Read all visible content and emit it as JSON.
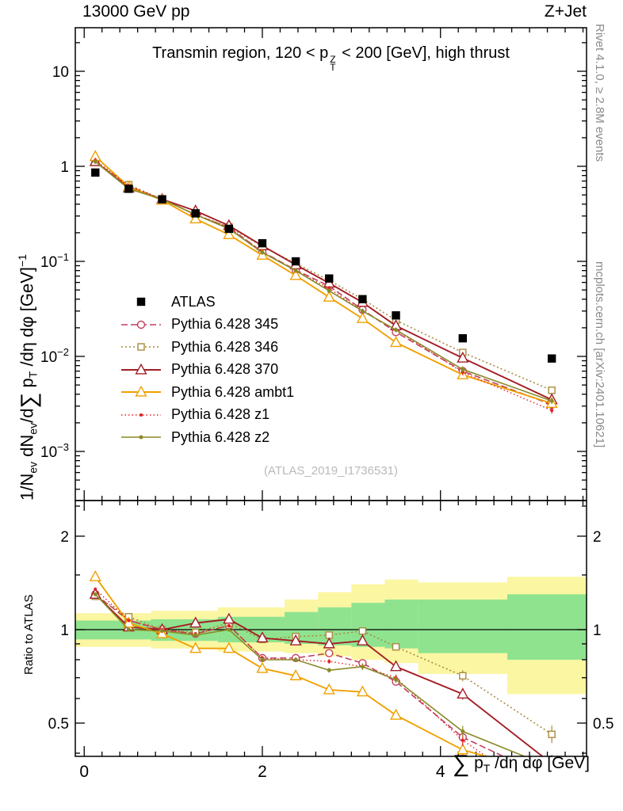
{
  "header": {
    "left": "13000 GeV pp",
    "right": "Z+Jet"
  },
  "plot": {
    "title_pre": "Transmin region, 120 < p",
    "title_sup": "Z",
    "title_sub": "T",
    "title_post": " < 200 [GeV], high thrust",
    "watermark": "(ATLAS_2019_I1736531)"
  },
  "ylabel": {
    "p1": "1/N",
    "s1": "ev",
    "p2": " dN",
    "s2": "ev",
    "p3": "/d",
    "sigma": "∑",
    "p4": " p",
    "s4": "T",
    "p5": " /dη dφ  [GeV]",
    "sup": "−1"
  },
  "xlabel": {
    "sigma": "∑",
    "p1": " p",
    "s1": "T",
    "p2": " /dη dφ [GeV]"
  },
  "ratio": {
    "ylabel": "Ratio to ATLAS"
  },
  "side": {
    "rivet": "Rivet 4.1.0, ≥ 2.8M events",
    "mcplots": "mcplots.cern.ch [arXiv:2401.10621]"
  },
  "chart_data": {
    "type": "line",
    "title": "Transmin region, 120 < pT^Z < 200 [GeV], high thrust",
    "xlabel": "Sum pT /deta dphi [GeV]",
    "ylabel": "1/N_ev dN_ev/d Sum pT /deta dphi [GeV]^-1",
    "ratio_ylabel": "Ratio to ATLAS",
    "log_y": true,
    "x": [
      0.125,
      0.5,
      0.875,
      1.25,
      1.625,
      2.0,
      2.375,
      2.75,
      3.125,
      3.5,
      4.25,
      5.25
    ],
    "reference": {
      "key": "atlas",
      "name": "ATLAS",
      "color": "#000000",
      "marker": "square",
      "msize": 9,
      "filled": true,
      "values": [
        0.86,
        0.58,
        0.45,
        0.32,
        0.22,
        0.155,
        0.1,
        0.066,
        0.04,
        0.027,
        0.0155,
        0.0095
      ]
    },
    "series": [
      {
        "key": "p345",
        "name": "Pythia 6.428 345",
        "color": "#c04060",
        "dash": "8,4",
        "marker": "circle",
        "msize": 9,
        "filled": false,
        "width": 1.6,
        "values": [
          1.12,
          0.62,
          0.45,
          0.31,
          0.227,
          0.126,
          0.081,
          0.055,
          0.031,
          0.018,
          0.007,
          0.0031
        ],
        "ratio": [
          1.3,
          1.07,
          1.0,
          0.97,
          1.03,
          0.81,
          0.81,
          0.84,
          0.78,
          0.68,
          0.45,
          0.33
        ]
      },
      {
        "key": "p346",
        "name": "Pythia 6.428 346",
        "color": "#a98b3d",
        "dash": "2,3",
        "marker": "square",
        "msize": 8,
        "filled": false,
        "width": 1.6,
        "values": [
          1.1,
          0.64,
          0.45,
          0.31,
          0.231,
          0.144,
          0.095,
          0.063,
          0.04,
          0.024,
          0.011,
          0.0044
        ],
        "ratio": [
          1.28,
          1.1,
          1.0,
          0.98,
          1.05,
          0.93,
          0.95,
          0.96,
          0.99,
          0.88,
          0.71,
          0.46
        ]
      },
      {
        "key": "p370",
        "name": "Pythia 6.428 370",
        "color": "#a31e25",
        "dash": "",
        "marker": "triangle",
        "msize": 11,
        "filled": false,
        "width": 1.9,
        "values": [
          1.12,
          0.59,
          0.45,
          0.34,
          0.238,
          0.146,
          0.092,
          0.059,
          0.037,
          0.021,
          0.0096,
          0.0035
        ],
        "ratio": [
          1.3,
          1.02,
          1.0,
          1.05,
          1.08,
          0.94,
          0.92,
          0.9,
          0.92,
          0.76,
          0.62,
          0.37
        ]
      },
      {
        "key": "ambt1",
        "name": "Pythia 6.428 ambt1",
        "color": "#f0a000",
        "dash": "",
        "marker": "triangle",
        "msize": 11,
        "filled": false,
        "width": 1.9,
        "values": [
          1.27,
          0.61,
          0.44,
          0.28,
          0.191,
          0.116,
          0.071,
          0.042,
          0.025,
          0.014,
          0.0064,
          0.0032
        ],
        "ratio": [
          1.48,
          1.05,
          0.97,
          0.87,
          0.87,
          0.75,
          0.71,
          0.64,
          0.63,
          0.53,
          0.41,
          0.34
        ]
      },
      {
        "key": "z1",
        "name": "Pythia 6.428 z1",
        "color": "#e02020",
        "dash": "1.5,3",
        "marker": "dot",
        "msize": 4,
        "filled": true,
        "width": 1.4,
        "values": [
          1.16,
          0.62,
          0.45,
          0.31,
          0.227,
          0.126,
          0.08,
          0.052,
          0.03,
          0.019,
          0.0068,
          0.0027
        ],
        "ratio": [
          1.35,
          1.07,
          1.0,
          0.97,
          1.03,
          0.81,
          0.8,
          0.79,
          0.76,
          0.7,
          0.44,
          0.28
        ]
      },
      {
        "key": "z2",
        "name": "Pythia 6.428 z2",
        "color": "#8a8a28",
        "dash": "",
        "marker": "dot",
        "msize": 5,
        "filled": true,
        "width": 1.6,
        "values": [
          1.12,
          0.58,
          0.45,
          0.31,
          0.22,
          0.124,
          0.08,
          0.049,
          0.03,
          0.019,
          0.0073,
          0.0034
        ],
        "ratio": [
          1.3,
          1.0,
          0.99,
          0.96,
          1.0,
          0.8,
          0.8,
          0.74,
          0.76,
          0.69,
          0.47,
          0.36
        ]
      }
    ],
    "bands": {
      "yellow": {
        "color": "#fbf6a2",
        "steps": [
          [
            -0.1,
            0.75,
            0.88,
            1.13
          ],
          [
            0.75,
            1.5,
            0.87,
            1.15
          ],
          [
            1.5,
            2.25,
            0.85,
            1.18
          ],
          [
            2.25,
            2.625,
            0.84,
            1.25
          ],
          [
            2.625,
            3.0,
            0.82,
            1.32
          ],
          [
            3.0,
            3.375,
            0.8,
            1.4
          ],
          [
            3.375,
            3.75,
            0.78,
            1.45
          ],
          [
            3.75,
            4.75,
            0.72,
            1.42
          ],
          [
            4.75,
            5.64,
            0.62,
            1.48
          ]
        ]
      },
      "green": {
        "color": "#8fe38f",
        "steps": [
          [
            -0.1,
            0.75,
            0.93,
            1.07
          ],
          [
            0.75,
            1.5,
            0.92,
            1.08
          ],
          [
            1.5,
            2.25,
            0.91,
            1.1
          ],
          [
            2.25,
            2.625,
            0.9,
            1.14
          ],
          [
            2.625,
            3.0,
            0.89,
            1.18
          ],
          [
            3.0,
            3.375,
            0.88,
            1.22
          ],
          [
            3.375,
            3.75,
            0.87,
            1.25
          ],
          [
            3.75,
            4.75,
            0.84,
            1.25
          ],
          [
            4.75,
            5.64,
            0.8,
            1.3
          ]
        ]
      }
    },
    "axes": {
      "x": {
        "range": [
          -0.1,
          5.64
        ],
        "minor_step": 0.2,
        "majors": [
          {
            "v": 0,
            "label": "0"
          },
          {
            "v": 2,
            "label": "2"
          },
          {
            "v": 4,
            "label": "4"
          }
        ]
      },
      "y_main": {
        "range": [
          0.00033,
          23
        ],
        "majors": [
          {
            "v": 10,
            "base": "10",
            "exp": ""
          },
          {
            "v": 1,
            "base": "1",
            "exp": ""
          },
          {
            "v": 0.1,
            "base": "10",
            "exp": "−1"
          },
          {
            "v": 0.01,
            "base": "10",
            "exp": "−2"
          },
          {
            "v": 0.001,
            "base": "10",
            "exp": "−3"
          }
        ]
      },
      "y_ratio": {
        "range": [
          0.39,
          2.6
        ],
        "majors": [
          {
            "v": 2,
            "label": "2"
          },
          {
            "v": 1,
            "label": "1"
          },
          {
            "v": 0.5,
            "label": "0.5"
          }
        ],
        "minors": [
          0.4,
          0.6,
          0.7,
          0.8,
          0.9,
          1.5,
          2.5
        ]
      }
    }
  }
}
